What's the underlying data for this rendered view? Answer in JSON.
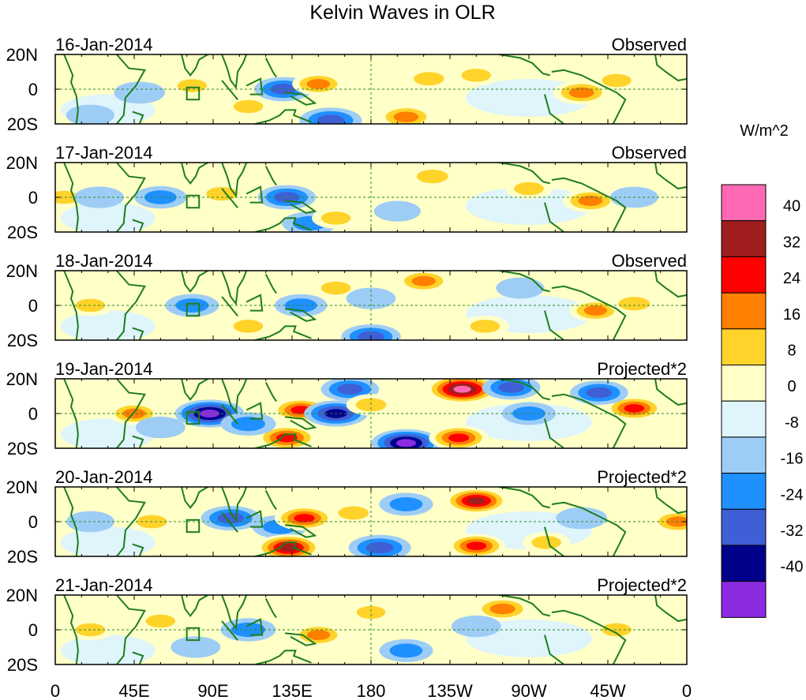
{
  "chart_data": {
    "type": "heatmap",
    "title": "Kelvin Waves in OLR",
    "units": "W/m^2",
    "x_ticks": [
      "0",
      "45E",
      "90E",
      "135E",
      "180",
      "135W",
      "90W",
      "45W",
      "0"
    ],
    "y_ticks": [
      "20N",
      "0",
      "20S"
    ],
    "xlim": [
      0,
      360
    ],
    "ylim": [
      -20,
      20
    ],
    "colorbar": {
      "levels": [
        -40,
        -32,
        -24,
        -16,
        -8,
        0,
        8,
        16,
        24,
        32,
        40
      ],
      "tick_labels": [
        "40",
        "32",
        "24",
        "16",
        "8",
        "0",
        "-8",
        "-16",
        "-24",
        "-32",
        "-40"
      ],
      "colors": [
        "#8b2be2",
        "#00008b",
        "#3f5fd6",
        "#1e90ff",
        "#9dcdf5",
        "#dff4fb",
        "#ffffc8",
        "#ffd32a",
        "#ff7f00",
        "#ff0000",
        "#a01e1e",
        "#ff69b4"
      ]
    },
    "panels": [
      {
        "date": "16-Jan-2014",
        "label": "Observed",
        "features": [
          {
            "lon": 48,
            "lat": -2,
            "value": -14
          },
          {
            "lon": 78,
            "lat": 2,
            "value": 10
          },
          {
            "lon": 110,
            "lat": -10,
            "value": 10
          },
          {
            "lon": 130,
            "lat": 0,
            "value": -24
          },
          {
            "lon": 150,
            "lat": 3,
            "value": 16
          },
          {
            "lon": 157,
            "lat": -18,
            "value": -30
          },
          {
            "lon": 200,
            "lat": -16,
            "value": 22
          },
          {
            "lon": 213,
            "lat": 6,
            "value": 12
          },
          {
            "lon": 240,
            "lat": 8,
            "value": 10
          },
          {
            "lon": 300,
            "lat": -2,
            "value": 22
          },
          {
            "lon": 320,
            "lat": 5,
            "value": 10
          },
          {
            "lon": 20,
            "lat": -15,
            "value": -10
          }
        ]
      },
      {
        "date": "17-Jan-2014",
        "label": "Observed",
        "features": [
          {
            "lon": 60,
            "lat": 0,
            "value": -16
          },
          {
            "lon": 95,
            "lat": 2,
            "value": 14
          },
          {
            "lon": 132,
            "lat": 0,
            "value": -24
          },
          {
            "lon": 145,
            "lat": -15,
            "value": -20
          },
          {
            "lon": 160,
            "lat": -12,
            "value": 10
          },
          {
            "lon": 215,
            "lat": 12,
            "value": 14
          },
          {
            "lon": 270,
            "lat": 5,
            "value": 10
          },
          {
            "lon": 305,
            "lat": -2,
            "value": 20
          },
          {
            "lon": 330,
            "lat": 0,
            "value": -10
          },
          {
            "lon": 5,
            "lat": 0,
            "value": 10
          },
          {
            "lon": 25,
            "lat": 0,
            "value": -12
          },
          {
            "lon": 195,
            "lat": -8,
            "value": -8
          }
        ]
      },
      {
        "date": "18-Jan-2014",
        "label": "Observed",
        "features": [
          {
            "lon": 78,
            "lat": 0,
            "value": -18
          },
          {
            "lon": 140,
            "lat": 0,
            "value": -16
          },
          {
            "lon": 180,
            "lat": -18,
            "value": -26
          },
          {
            "lon": 210,
            "lat": 14,
            "value": 18
          },
          {
            "lon": 308,
            "lat": -3,
            "value": 16
          },
          {
            "lon": 330,
            "lat": 1,
            "value": 14
          },
          {
            "lon": 160,
            "lat": 10,
            "value": 10
          },
          {
            "lon": 180,
            "lat": 4,
            "value": -12
          },
          {
            "lon": 20,
            "lat": 0,
            "value": 10
          },
          {
            "lon": 110,
            "lat": -12,
            "value": 10
          },
          {
            "lon": 265,
            "lat": 10,
            "value": -10
          },
          {
            "lon": 245,
            "lat": -12,
            "value": 10
          }
        ]
      },
      {
        "date": "19-Jan-2014",
        "label": "Projected*2",
        "features": [
          {
            "lon": 88,
            "lat": 0,
            "value": -40
          },
          {
            "lon": 140,
            "lat": 2,
            "value": 24
          },
          {
            "lon": 160,
            "lat": 0,
            "value": -32
          },
          {
            "lon": 168,
            "lat": 14,
            "value": -24
          },
          {
            "lon": 132,
            "lat": -14,
            "value": 28
          },
          {
            "lon": 200,
            "lat": -17,
            "value": -40
          },
          {
            "lon": 232,
            "lat": 14,
            "value": 44
          },
          {
            "lon": 230,
            "lat": -14,
            "value": 26
          },
          {
            "lon": 260,
            "lat": 15,
            "value": -24
          },
          {
            "lon": 330,
            "lat": 3,
            "value": 24
          },
          {
            "lon": 310,
            "lat": 12,
            "value": -24
          },
          {
            "lon": 270,
            "lat": 0,
            "value": -18
          },
          {
            "lon": 45,
            "lat": 0,
            "value": 16
          },
          {
            "lon": 110,
            "lat": -6,
            "value": -20
          },
          {
            "lon": 180,
            "lat": 5,
            "value": 12
          },
          {
            "lon": 60,
            "lat": -8,
            "value": -12
          }
        ]
      },
      {
        "date": "20-Jan-2014",
        "label": "Projected*2",
        "features": [
          {
            "lon": 100,
            "lat": 2,
            "value": -26
          },
          {
            "lon": 128,
            "lat": -3,
            "value": -20
          },
          {
            "lon": 142,
            "lat": 2,
            "value": 26
          },
          {
            "lon": 133,
            "lat": -15,
            "value": 34
          },
          {
            "lon": 185,
            "lat": -15,
            "value": -30
          },
          {
            "lon": 200,
            "lat": 10,
            "value": -18
          },
          {
            "lon": 240,
            "lat": 12,
            "value": 32
          },
          {
            "lon": 240,
            "lat": -14,
            "value": 24
          },
          {
            "lon": 300,
            "lat": 2,
            "value": -14
          },
          {
            "lon": 355,
            "lat": 0,
            "value": 18
          },
          {
            "lon": 55,
            "lat": 0,
            "value": 12
          },
          {
            "lon": 20,
            "lat": 0,
            "value": -10
          },
          {
            "lon": 280,
            "lat": -12,
            "value": 10
          },
          {
            "lon": 170,
            "lat": 5,
            "value": 12
          }
        ]
      },
      {
        "date": "21-Jan-2014",
        "label": "Projected*2",
        "features": [
          {
            "lon": 110,
            "lat": 0,
            "value": -20
          },
          {
            "lon": 150,
            "lat": -3,
            "value": 16
          },
          {
            "lon": 200,
            "lat": -12,
            "value": -18
          },
          {
            "lon": 255,
            "lat": 12,
            "value": 22
          },
          {
            "lon": 240,
            "lat": 2,
            "value": -12
          },
          {
            "lon": 60,
            "lat": 5,
            "value": 10
          },
          {
            "lon": 20,
            "lat": 0,
            "value": 10
          },
          {
            "lon": 320,
            "lat": 0,
            "value": 10
          },
          {
            "lon": 180,
            "lat": 10,
            "value": 8
          },
          {
            "lon": 80,
            "lat": -10,
            "value": -12
          }
        ]
      }
    ]
  }
}
